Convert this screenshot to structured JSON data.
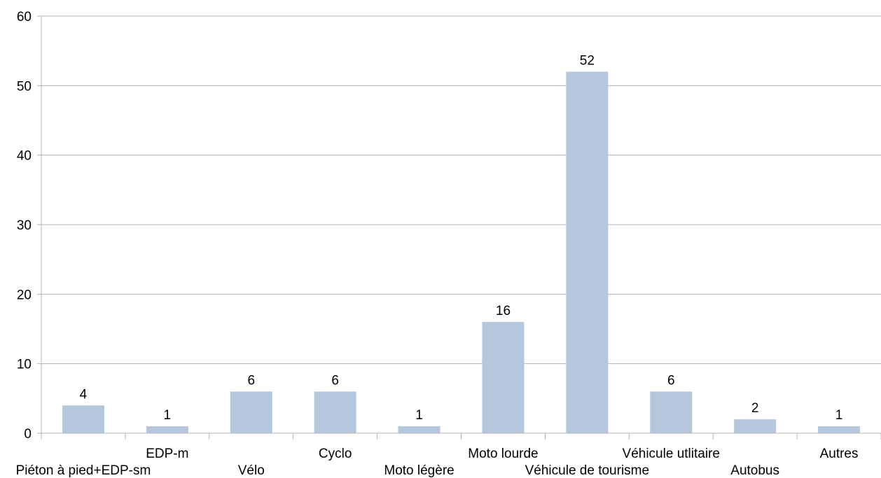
{
  "chart_data": {
    "type": "bar",
    "title": "",
    "xlabel": "",
    "ylabel": "",
    "categories": [
      "Piéton à pied+EDP-sm",
      "EDP-m",
      "Vélo",
      "Cyclo",
      "Moto légère",
      "Moto lourde",
      "Véhicule de tourisme",
      "Véhicule utlitaire",
      "Autobus",
      "Autres"
    ],
    "values": [
      4,
      1,
      6,
      6,
      1,
      16,
      52,
      6,
      2,
      1
    ],
    "ylim": [
      0,
      60
    ],
    "yticks": [
      0,
      10,
      20,
      30,
      40,
      50,
      60
    ],
    "grid": true,
    "legend": "none",
    "data_labels": true,
    "colors": {
      "bar": "#b4c7dc",
      "grid": "#b3b3b3",
      "axis": "#b3b3b3",
      "text": "#000000"
    }
  }
}
